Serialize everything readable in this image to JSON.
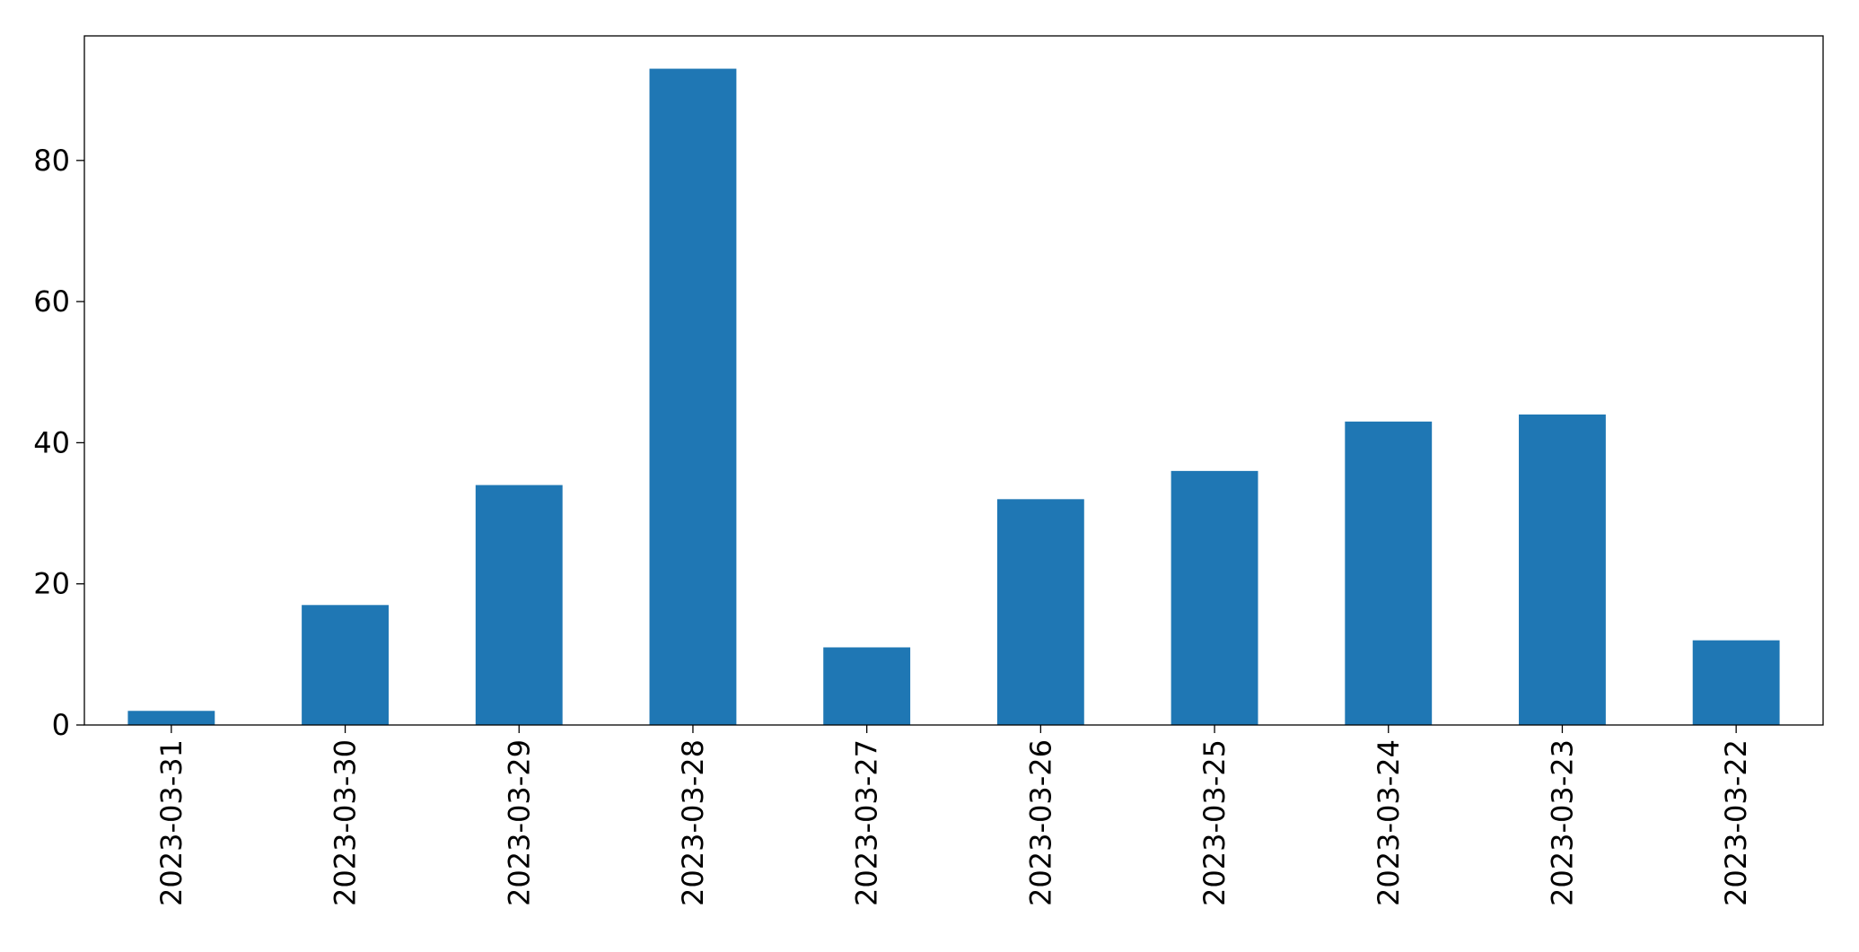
{
  "chart_data": {
    "type": "bar",
    "categories": [
      "2023-03-31",
      "2023-03-30",
      "2023-03-29",
      "2023-03-28",
      "2023-03-27",
      "2023-03-26",
      "2023-03-25",
      "2023-03-24",
      "2023-03-23",
      "2023-03-22"
    ],
    "values": [
      2,
      17,
      34,
      93,
      11,
      32,
      36,
      43,
      44,
      12
    ],
    "color": "#1f77b4",
    "ylim": [
      0,
      97.65
    ],
    "yticks": [
      0,
      20,
      40,
      60,
      80
    ],
    "grid": false
  }
}
